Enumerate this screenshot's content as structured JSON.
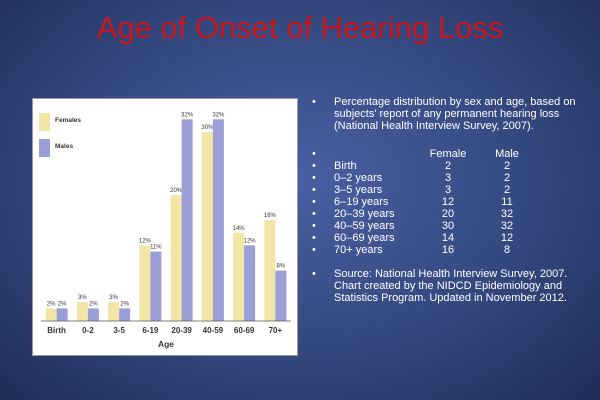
{
  "slide": {
    "title": "Age of Onset of Hearing Loss"
  },
  "chart_data": {
    "type": "bar",
    "title": "",
    "xlabel": "Age",
    "ylabel": "",
    "ylim": [
      0,
      33
    ],
    "grid": false,
    "legend": "top-left",
    "categories": [
      "Birth",
      "0-2",
      "3-5",
      "6-19",
      "20-39",
      "40-59",
      "60-69",
      "70+"
    ],
    "series": [
      {
        "name": "Females",
        "color": "#f2e6a6",
        "values": [
          2,
          3,
          3,
          12,
          20,
          30,
          14,
          16
        ],
        "labels": [
          "2%",
          "3%",
          "3%",
          "12%",
          "20%",
          "30%",
          "14%",
          "16%"
        ]
      },
      {
        "name": "Males",
        "color": "#9b9fd6",
        "values": [
          2,
          2,
          2,
          11,
          32,
          32,
          12,
          8
        ],
        "labels": [
          "2%",
          "2%",
          "2%",
          "11%",
          "32%",
          "32%",
          "12%",
          "8%"
        ]
      }
    ]
  },
  "notes": {
    "bullet": "•",
    "intro": "Percentage distribution by sex and age, based on subjects' report of any permanent hearing loss (National Health Interview Survey, 2007).",
    "header": {
      "female": "Female",
      "male": "Male"
    },
    "rows": [
      {
        "age": "Birth",
        "female": "2",
        "male": "2"
      },
      {
        "age": "0–2 years",
        "female": "3",
        "male": "2"
      },
      {
        "age": "3–5 years",
        "female": "3",
        "male": "2"
      },
      {
        "age": "6–19 years",
        "female": "12",
        "male": "11"
      },
      {
        "age": "20–39 years",
        "female": "20",
        "male": "32"
      },
      {
        "age": "40–59 years",
        "female": "30",
        "male": "32"
      },
      {
        "age": "60–69 years",
        "female": "14",
        "male": "12"
      },
      {
        "age": "70+ years",
        "female": "16",
        "male": "8"
      }
    ],
    "source": "Source: National Health Interview Survey, 2007. Chart created by the NIDCD Epidemiology and Statistics Program. Updated in November 2012."
  }
}
